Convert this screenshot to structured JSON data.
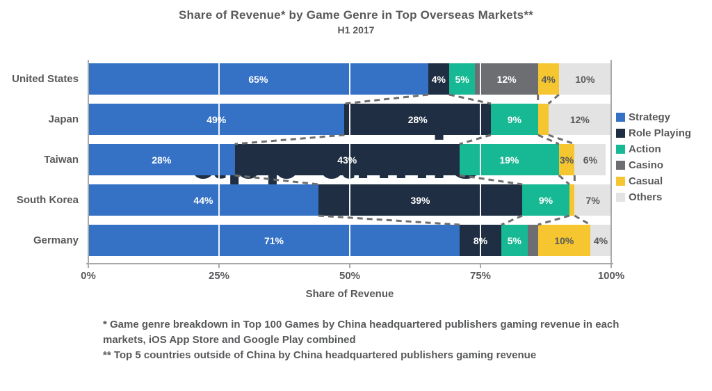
{
  "title": "Share of Revenue* by Game Genre in Top Overseas Markets**",
  "subtitle": "H1 2017",
  "watermark": "app annie",
  "footnotes": {
    "line1": "* Game genre breakdown in Top 100 Games by China headquartered publishers gaming revenue in each markets, iOS App Store and Google Play combined",
    "line2": "** Top 5 countries outside of China by China headquartered publishers gaming revenue"
  },
  "colors": {
    "text_gray": "#58595b",
    "axis_gray": "#a7a9ac",
    "dash_gray": "#6e6e6e",
    "watermark_navy": "#1f2e42",
    "background": "#ffffff"
  },
  "chart_data": {
    "type": "bar",
    "orientation": "horizontal-stacked",
    "title": "Share of Revenue* by Game Genre in Top Overseas Markets**",
    "subtitle": "H1 2017",
    "xlabel": "Share of Revenue",
    "xlim": [
      0,
      100
    ],
    "x_ticks": [
      "0%",
      "25%",
      "50%",
      "75%",
      "100%"
    ],
    "x_tick_values": [
      0,
      25,
      50,
      75,
      100
    ],
    "grid": "vertical-white-over-bars",
    "legend_position": "right",
    "label_threshold": 3,
    "label_unit": "%",
    "categories": [
      "United States",
      "Japan",
      "Taiwan",
      "South Korea",
      "Germany"
    ],
    "series": [
      {
        "name": "Strategy",
        "color": "#3572c6",
        "label_color": "#ffffff",
        "values": [
          65,
          49,
          28,
          44,
          71
        ]
      },
      {
        "name": "Role Playing",
        "color": "#1f2e42",
        "label_color": "#ffffff",
        "values": [
          4,
          28,
          43,
          39,
          8
        ]
      },
      {
        "name": "Action",
        "color": "#17b894",
        "label_color": "#ffffff",
        "values": [
          5,
          9,
          19,
          9,
          5
        ]
      },
      {
        "name": "Casino",
        "color": "#6d6e71",
        "label_color": "#ffffff",
        "values": [
          12,
          0,
          0,
          0,
          2
        ]
      },
      {
        "name": "Casual",
        "color": "#f5c62f",
        "label_color": "#58595b",
        "values": [
          4,
          2,
          3,
          1,
          10
        ]
      },
      {
        "name": "Others",
        "color": "#e3e3e3",
        "label_color": "#58595b",
        "values": [
          10,
          12,
          6,
          7,
          4
        ]
      }
    ],
    "dashed_envelope_series": [
      "Role Playing",
      "Casual"
    ]
  }
}
